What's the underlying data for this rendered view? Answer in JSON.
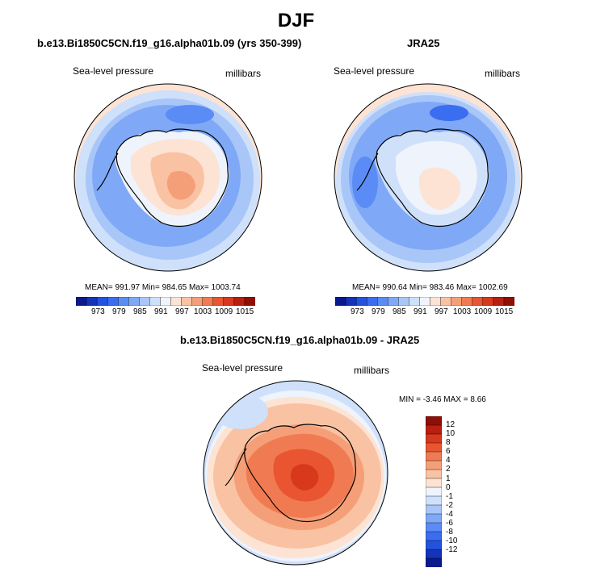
{
  "figure": {
    "title": "DJF"
  },
  "panels": [
    {
      "header": "b.e13.Bi1850C5CN.f19_g16.alpha01b.09 (yrs 350-399)",
      "variable": "Sea-level pressure",
      "units": "millibars",
      "stats": "MEAN= 991.97  Min= 984.65  Max= 1003.74"
    },
    {
      "header": "JRA25",
      "variable": "Sea-level pressure",
      "units": "millibars",
      "stats": "MEAN= 990.64  Min= 983.46  Max= 1002.69"
    },
    {
      "header": "b.e13.Bi1850C5CN.f19_g16.alpha01b.09 - JRA25",
      "variable": "Sea-level pressure",
      "units": "millibars",
      "stats": "MIN =  -3.46 MAX =   8.66"
    }
  ],
  "colorbar_abs": {
    "labels": [
      "973",
      "979",
      "985",
      "991",
      "997",
      "1003",
      "1009",
      "1015"
    ],
    "colors": [
      "#0a1a8c",
      "#1533b8",
      "#2352e0",
      "#3a6df0",
      "#5b8cf5",
      "#7fa9f7",
      "#a9c6f8",
      "#cfe0fa",
      "#eef3fc",
      "#fde3d3",
      "#f9c2a3",
      "#f59f78",
      "#f07b52",
      "#e85530",
      "#d8381c",
      "#b81f10",
      "#8e0f05"
    ]
  },
  "colorbar_diff": {
    "labels": [
      "12",
      "10",
      "8",
      "6",
      "4",
      "2",
      "1",
      "0",
      "-1",
      "-2",
      "-4",
      "-6",
      "-8",
      "-10",
      "-12"
    ],
    "colors": [
      "#8e0f05",
      "#b81f10",
      "#d8381c",
      "#e85530",
      "#f07b52",
      "#f59f78",
      "#f9c2a3",
      "#fde3d3",
      "#eef3fc",
      "#cfe0fa",
      "#a9c6f8",
      "#7fa9f7",
      "#5b8cf5",
      "#3a6df0",
      "#2352e0",
      "#1533b8",
      "#0a1a8c"
    ]
  }
}
